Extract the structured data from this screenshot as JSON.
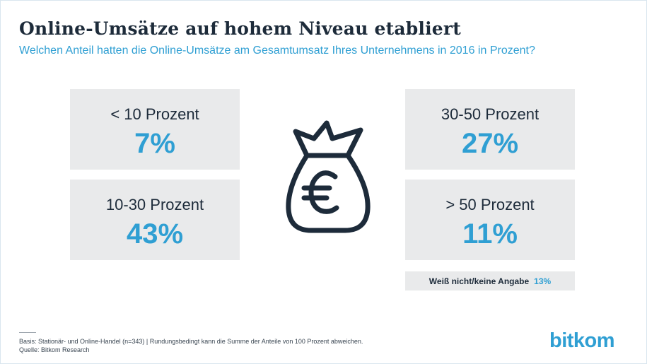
{
  "title": "Online-Umsätze auf hohem Niveau etabliert",
  "subtitle": "Welchen Anteil hatten die Online-Umsätze am Gesamtumsatz Ihres Unternehmens in 2016 in Prozent?",
  "chart_data": {
    "type": "table",
    "categories": [
      "< 10 Prozent",
      "10-30 Prozent",
      "30-50 Prozent",
      "> 50 Prozent",
      "Weiß nicht/keine Angabe"
    ],
    "values": [
      7,
      43,
      27,
      11,
      13
    ],
    "value_labels": [
      "7%",
      "43%",
      "27%",
      "11%",
      "13%"
    ],
    "unit": "%"
  },
  "icon": "money-bag-euro-icon",
  "footnote": {
    "basis": "Basis: Stationär- und Online-Handel (n=343) | Rundungsbedingt kann die Summe der Anteile von 100 Prozent abweichen.",
    "source": "Quelle: Bitkom Research"
  },
  "logo": "bitkom",
  "colors": {
    "accent": "#2f9fd3",
    "text": "#1d2b3a",
    "box": "#e9eaeb"
  }
}
